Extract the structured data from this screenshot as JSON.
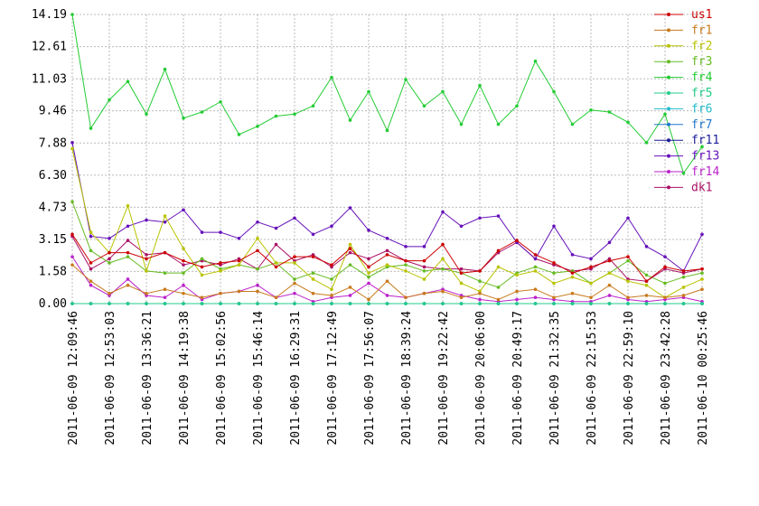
{
  "chart_data": {
    "type": "line",
    "categories": [
      "2011-06-09 12:09:46",
      null,
      "2011-06-09 12:53:03",
      null,
      "2011-06-09 13:36:21",
      null,
      "2011-06-09 14:19:38",
      null,
      "2011-06-09 15:02:56",
      null,
      "2011-06-09 15:46:14",
      null,
      "2011-06-09 16:29:31",
      null,
      "2011-06-09 17:12:49",
      null,
      "2011-06-09 17:56:07",
      null,
      "2011-06-09 18:39:24",
      null,
      "2011-06-09 19:22:42",
      null,
      "2011-06-09 20:06:00",
      null,
      "2011-06-09 20:49:17",
      null,
      "2011-06-09 21:32:35",
      null,
      "2011-06-09 22:15:53",
      null,
      "2011-06-09 22:59:10",
      null,
      "2011-06-09 23:42:28",
      null,
      "2011-06-10 00:25:46"
    ],
    "ylim": [
      0,
      14.19
    ],
    "yticks": [
      {
        "value": 0,
        "label": "0.00"
      },
      1.58,
      3.15,
      4.73,
      {
        "value": 6.3,
        "label": "6.30"
      },
      7.88,
      9.46,
      11.03,
      12.61,
      14.19
    ],
    "grid": true,
    "legend": "right",
    "series": [
      {
        "name": "us1",
        "color": "#cc0000",
        "values": [
          3.4,
          2.0,
          2.5,
          2.5,
          2.2,
          2.5,
          2.1,
          1.8,
          2.0,
          2.1,
          2.6,
          1.8,
          2.3,
          2.3,
          1.9,
          2.7,
          1.8,
          2.4,
          2.1,
          2.1,
          2.9,
          1.5,
          1.6,
          2.6,
          3.1,
          2.4,
          2.0,
          1.5,
          1.8,
          2.1,
          2.3,
          1.1,
          1.8,
          1.6,
          1.7
        ]
      },
      {
        "name": "fr1",
        "color": "#c87a1e",
        "values": [
          1.9,
          1.1,
          0.5,
          0.9,
          0.5,
          0.7,
          0.5,
          0.3,
          0.5,
          0.6,
          0.6,
          0.3,
          1.0,
          0.5,
          0.4,
          0.8,
          0.2,
          1.1,
          0.3,
          0.5,
          0.6,
          0.3,
          0.5,
          0.2,
          0.6,
          0.7,
          0.3,
          0.5,
          0.3,
          0.9,
          0.3,
          0.4,
          0.3,
          0.4,
          0.7
        ]
      },
      {
        "name": "fr2",
        "color": "#b8c400",
        "values": [
          7.6,
          3.5,
          2.5,
          4.8,
          1.6,
          4.3,
          2.7,
          1.4,
          1.6,
          1.9,
          3.2,
          2.0,
          2.0,
          1.2,
          0.7,
          2.9,
          1.5,
          1.9,
          1.6,
          1.2,
          2.2,
          1.0,
          0.6,
          1.8,
          1.4,
          1.6,
          1.0,
          1.3,
          1.0,
          1.5,
          1.1,
          0.9,
          0.3,
          0.8,
          1.2
        ]
      },
      {
        "name": "fr3",
        "color": "#66bb22",
        "values": [
          5.0,
          2.6,
          2.0,
          2.3,
          1.6,
          1.5,
          1.5,
          2.2,
          1.7,
          1.9,
          1.7,
          2.0,
          1.2,
          1.5,
          1.2,
          1.9,
          1.3,
          1.8,
          1.9,
          1.6,
          1.7,
          1.5,
          1.1,
          0.8,
          1.5,
          1.8,
          1.5,
          1.6,
          1.0,
          1.5,
          2.1,
          1.4,
          1.0,
          1.3,
          1.5
        ]
      },
      {
        "name": "fr4",
        "color": "#22cc33",
        "values": [
          14.19,
          8.6,
          10.0,
          10.9,
          9.3,
          11.5,
          9.1,
          9.4,
          9.9,
          8.3,
          8.7,
          9.2,
          9.3,
          9.7,
          11.1,
          9.0,
          10.4,
          8.5,
          11.0,
          9.7,
          10.4,
          8.8,
          10.7,
          8.8,
          9.7,
          11.9,
          10.4,
          8.8,
          9.5,
          9.4,
          8.9,
          7.9,
          9.3,
          6.4,
          7.7
        ]
      },
      {
        "name": "fr5",
        "color": "#22cc88",
        "values": [
          0,
          0,
          0,
          0,
          0,
          0,
          0,
          0,
          0,
          0,
          0,
          0,
          0,
          0,
          0,
          0,
          0,
          0,
          0,
          0,
          0,
          0,
          0,
          0,
          0,
          0,
          0,
          0,
          0,
          0,
          0,
          0,
          0,
          0,
          0
        ]
      },
      {
        "name": "fr6",
        "color": "#22bbcc",
        "values": [
          0,
          0,
          0,
          0,
          0,
          0,
          0,
          0,
          0,
          0,
          0,
          0,
          0,
          0,
          0,
          0,
          0,
          0,
          0,
          0,
          0,
          0,
          0,
          0,
          0,
          0,
          0,
          0,
          0,
          0,
          0,
          0,
          0,
          0,
          0
        ]
      },
      {
        "name": "fr7",
        "color": "#2277cc",
        "values": [
          0,
          0,
          0,
          0,
          0,
          0,
          0,
          0,
          0,
          0,
          0,
          0,
          0,
          0,
          0,
          0,
          0,
          0,
          0,
          0,
          0,
          0,
          0,
          0,
          0,
          0,
          0,
          0,
          0,
          0,
          0,
          0,
          0,
          0,
          0
        ]
      },
      {
        "name": "fr11",
        "color": "#1a1a9a",
        "values": [
          0,
          0,
          0,
          0,
          0,
          0,
          0,
          0,
          0,
          0,
          0,
          0,
          0,
          0,
          0,
          0,
          0,
          0,
          0,
          0,
          0,
          0,
          0,
          0,
          0,
          0,
          0,
          0,
          0,
          0,
          0,
          0,
          0,
          0,
          0
        ]
      },
      {
        "name": "fr13",
        "color": "#6611bb",
        "values": [
          7.9,
          3.3,
          3.2,
          3.8,
          4.1,
          4.0,
          4.6,
          3.5,
          3.5,
          3.2,
          4.0,
          3.7,
          4.2,
          3.4,
          3.8,
          4.7,
          3.6,
          3.2,
          2.8,
          2.8,
          4.5,
          3.8,
          4.2,
          4.3,
          3.0,
          2.2,
          3.8,
          2.4,
          2.2,
          3.0,
          4.2,
          2.8,
          2.3,
          1.6,
          3.4
        ]
      },
      {
        "name": "fr14",
        "color": "#bb22cc",
        "values": [
          2.3,
          0.9,
          0.4,
          1.2,
          0.4,
          0.3,
          0.9,
          0.2,
          0.5,
          0.6,
          0.9,
          0.3,
          0.5,
          0.1,
          0.3,
          0.4,
          1.0,
          0.4,
          0.3,
          0.5,
          0.7,
          0.4,
          0.2,
          0.1,
          0.2,
          0.3,
          0.2,
          0.1,
          0.1,
          0.4,
          0.2,
          0.1,
          0.2,
          0.3,
          0.1
        ]
      },
      {
        "name": "dk1",
        "color": "#aa1166",
        "values": [
          3.3,
          1.7,
          2.2,
          3.1,
          2.4,
          2.5,
          1.9,
          2.1,
          1.9,
          2.2,
          1.7,
          2.9,
          2.1,
          2.4,
          1.8,
          2.5,
          2.2,
          2.6,
          2.1,
          1.8,
          1.7,
          1.7,
          1.6,
          2.5,
          3.0,
          2.2,
          1.9,
          1.6,
          1.7,
          2.2,
          1.2,
          1.1,
          1.7,
          1.5,
          1.7
        ]
      }
    ]
  }
}
